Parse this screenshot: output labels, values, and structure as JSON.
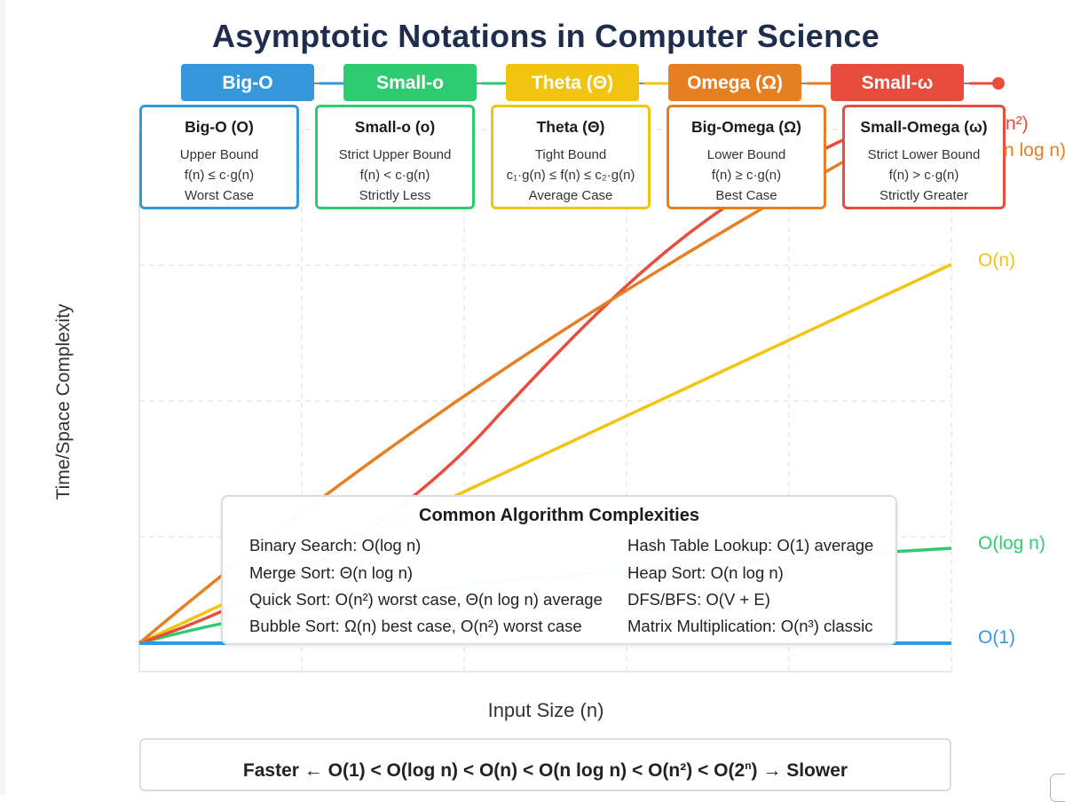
{
  "title": "Asymptotic Notations in Computer Science",
  "axes": {
    "y_label": "Time/Space Complexity",
    "x_label": "Input Size (n)"
  },
  "tabs": [
    {
      "label": "Big-O",
      "color": "#3498db"
    },
    {
      "label": "Small-o",
      "color": "#2ecc71"
    },
    {
      "label": "Theta (Θ)",
      "color": "#f1c40f"
    },
    {
      "label": "Omega (Ω)",
      "color": "#e67e22"
    },
    {
      "label": "Small-ω",
      "color": "#e74c3c"
    }
  ],
  "cards": [
    {
      "title": "Big-O (O)",
      "lines": [
        "Upper Bound",
        "f(n) ≤ c·g(n)",
        "Worst Case"
      ],
      "color": "#3498db"
    },
    {
      "title": "Small-o (o)",
      "lines": [
        "Strict Upper Bound",
        "f(n) < c·g(n)",
        "Strictly Less"
      ],
      "color": "#2ecc71"
    },
    {
      "title": "Theta (Θ)",
      "lines": [
        "Tight Bound",
        "c₁·g(n) ≤ f(n) ≤ c₂·g(n)",
        "Average Case"
      ],
      "color": "#f1c40f"
    },
    {
      "title": "Big-Omega (Ω)",
      "lines": [
        "Lower Bound",
        "f(n) ≥ c·g(n)",
        "Best Case"
      ],
      "color": "#e67e22"
    },
    {
      "title": "Small-Omega (ω)",
      "lines": [
        "Strict Lower Bound",
        "f(n) > c·g(n)",
        "Strictly Greater"
      ],
      "color": "#e74c3c"
    }
  ],
  "curve_labels": [
    {
      "text": "n²)",
      "color": "#e74c3c"
    },
    {
      "text": "n log n)",
      "color": "#e67e22"
    },
    {
      "text": "O(n)",
      "color": "#f1c40f"
    },
    {
      "text": "O(log n)",
      "color": "#2ecc71"
    },
    {
      "text": "O(1)",
      "color": "#3498db"
    }
  ],
  "algorithms": {
    "title": "Common Algorithm Complexities",
    "left": [
      "Binary Search: O(log n)",
      "Merge Sort: Θ(n log n)",
      "Quick Sort: O(n²) worst case, Θ(n log n) average",
      "Bubble Sort: Ω(n) best case, O(n²) worst case"
    ],
    "right": [
      "Hash Table Lookup: O(1) average",
      "Heap Sort: O(n log n)",
      "DFS/BFS: O(V + E)",
      "Matrix Multiplication: O(n³) classic"
    ]
  },
  "ordering": {
    "prefix": "Faster ← O(1) < O(log n) < O(n) < O(n log n) < O(n²) < O(2",
    "superscript": "n",
    "suffix": ") → Slower"
  }
}
